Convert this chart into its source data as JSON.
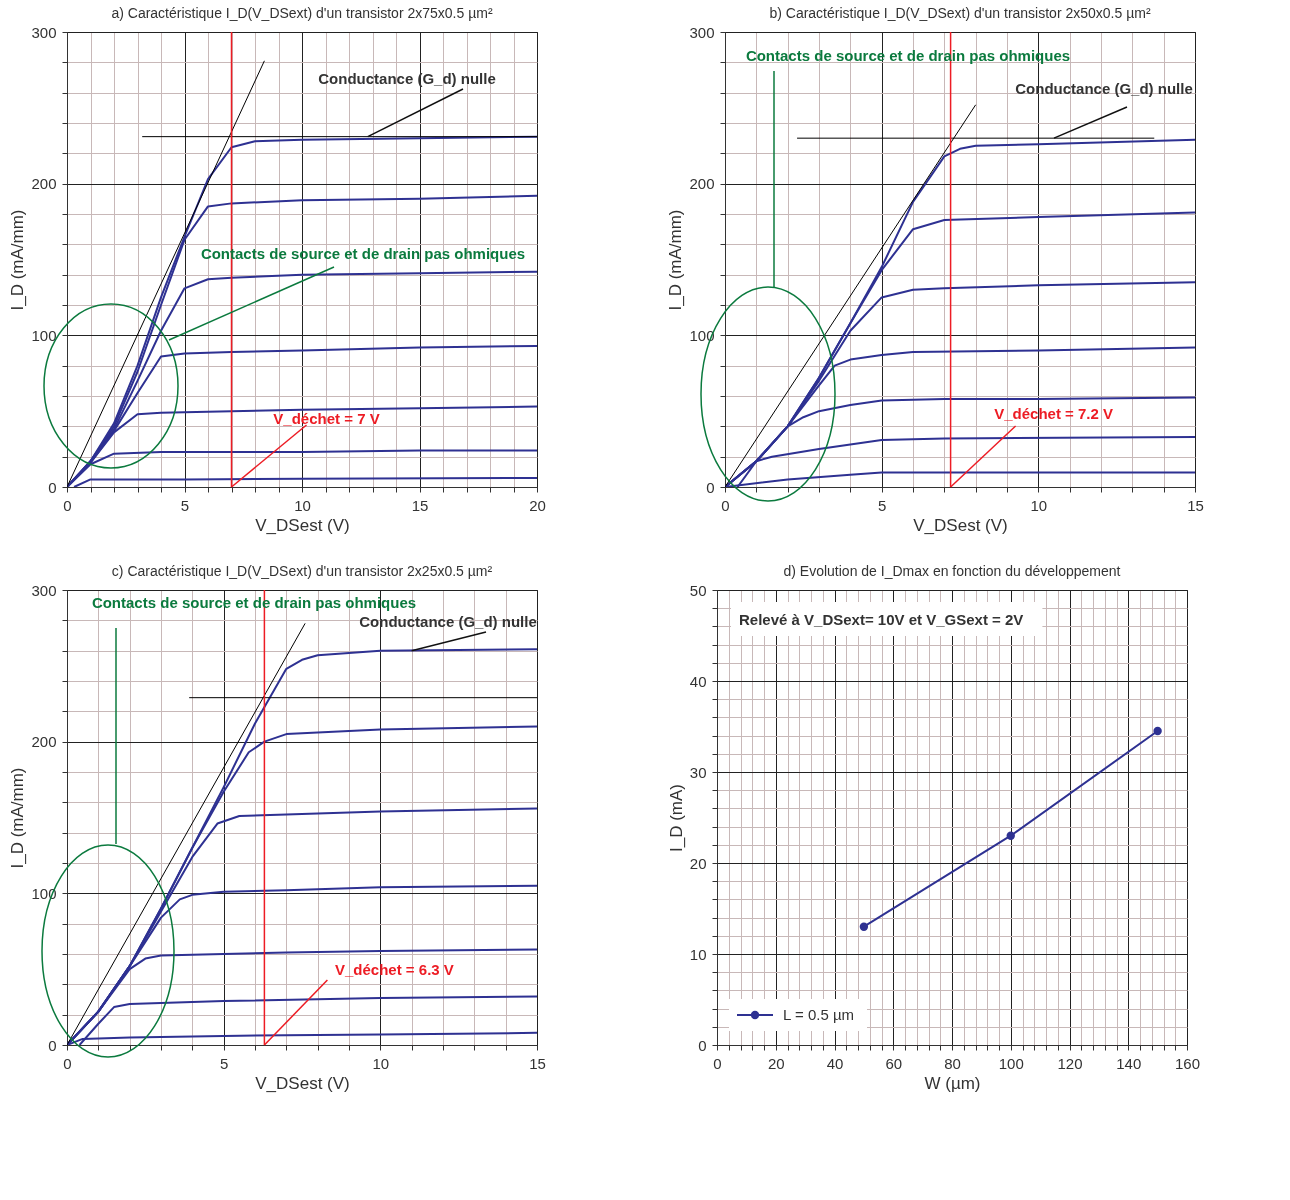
{
  "chart_data": [
    {
      "type": "line",
      "title": "a) Caractéristique I_D(V_DSext) d'un transistor 2x75x0.5 µm²",
      "xlabel": "V_DSest (V)",
      "ylabel": "I_D (mA/mm)",
      "xlim": [
        0,
        20
      ],
      "ylim": [
        0,
        300
      ],
      "grid": true,
      "xticks": [
        0,
        {
          "value": 1,
          "label": null
        },
        {
          "value": 2,
          "label": null
        },
        {
          "value": 3,
          "label": null
        },
        {
          "value": 4,
          "label": null
        },
        5,
        {
          "value": 6,
          "label": null
        },
        {
          "value": 7,
          "label": null
        },
        {
          "value": 8,
          "label": null
        },
        {
          "value": 9,
          "label": null
        },
        10,
        {
          "value": 11,
          "label": null
        },
        {
          "value": 12,
          "label": null
        },
        {
          "value": 13,
          "label": null
        },
        {
          "value": 14,
          "label": null
        },
        15,
        {
          "value": 16,
          "label": null
        },
        {
          "value": 17,
          "label": null
        },
        {
          "value": 18,
          "label": null
        },
        {
          "value": 19,
          "label": null
        },
        20
      ],
      "yticks": [
        0,
        {
          "value": 20,
          "label": null
        },
        {
          "value": 40,
          "label": null
        },
        {
          "value": 60,
          "label": null
        },
        {
          "value": 80,
          "label": null
        },
        100,
        {
          "value": 120,
          "label": null
        },
        {
          "value": 140,
          "label": null
        },
        {
          "value": 160,
          "label": null
        },
        {
          "value": 180,
          "label": null
        },
        200,
        {
          "value": 220,
          "label": null
        },
        {
          "value": 240,
          "label": null
        },
        {
          "value": 260,
          "label": null
        },
        {
          "value": 280,
          "label": null
        },
        300
      ],
      "series": [
        {
          "color": "#2e3192",
          "x": [
            0,
            1,
            2,
            3,
            4,
            5,
            6,
            7,
            8,
            10,
            15,
            20
          ],
          "values": [
            0,
            17,
            42,
            80,
            125,
            165,
            203,
            224,
            228,
            229,
            230,
            231
          ]
        },
        {
          "color": "#2e3192",
          "x": [
            0,
            1,
            2,
            3,
            4,
            5,
            6,
            7,
            10,
            15,
            20
          ],
          "values": [
            0,
            17,
            40,
            76,
            120,
            163,
            185,
            187,
            189,
            190,
            192
          ]
        },
        {
          "color": "#2e3192",
          "x": [
            0,
            1,
            2,
            3,
            4,
            5,
            6,
            7,
            10,
            15,
            20
          ],
          "values": [
            0,
            17,
            38,
            70,
            103,
            131,
            137,
            138,
            140,
            141,
            142
          ]
        },
        {
          "color": "#2e3192",
          "x": [
            0,
            1,
            2,
            3,
            4,
            5,
            7,
            10,
            15,
            20
          ],
          "values": [
            0,
            16,
            37,
            62,
            86,
            88,
            89,
            90,
            92,
            93
          ]
        },
        {
          "color": "#2e3192",
          "x": [
            0,
            1,
            2,
            3,
            4,
            7,
            10,
            15,
            20
          ],
          "values": [
            0,
            16,
            36,
            48,
            49,
            50,
            51,
            52,
            53
          ]
        },
        {
          "color": "#2e3192",
          "x": [
            0,
            1,
            2,
            4,
            10,
            15,
            20
          ],
          "values": [
            0,
            15,
            22,
            23,
            23,
            24,
            24
          ]
        },
        {
          "color": "#2e3192",
          "x": [
            0.3,
            1,
            5,
            10,
            20
          ],
          "values": [
            0,
            5,
            5,
            5.5,
            6
          ]
        },
        {
          "type": "line",
          "color": "#000000",
          "x": [
            0,
            8.4
          ],
          "values": [
            0,
            281
          ]
        },
        {
          "type": "line",
          "color": "#000000",
          "x": [
            3.2,
            20
          ],
          "values": [
            231,
            231
          ]
        }
      ],
      "ref_lines": [
        {
          "axis": "x",
          "value": 7,
          "label": "V_déchet = 7 V",
          "color": "#ed1c24"
        }
      ],
      "annotations": [
        {
          "text": "Conductance (G_d) nulle",
          "x": 12.8,
          "y": 231
        },
        "Contacts de source et de drain pas ohmiques"
      ]
    },
    {
      "type": "line",
      "title": "b) Caractéristique I_D(V_DSext) d'un transistor 2x50x0.5 µm²",
      "xlabel": "V_DSest (V)",
      "ylabel": "I_D (mA/mm)",
      "xlim": [
        0,
        15
      ],
      "ylim": [
        0,
        300
      ],
      "grid": true,
      "xticks": [
        0,
        {
          "value": 1,
          "label": null
        },
        {
          "value": 2,
          "label": null
        },
        {
          "value": 3,
          "label": null
        },
        {
          "value": 4,
          "label": null
        },
        5,
        {
          "value": 6,
          "label": null
        },
        {
          "value": 7,
          "label": null
        },
        {
          "value": 8,
          "label": null
        },
        {
          "value": 9,
          "label": null
        },
        10,
        {
          "value": 11,
          "label": null
        },
        {
          "value": 12,
          "label": null
        },
        {
          "value": 13,
          "label": null
        },
        {
          "value": 14,
          "label": null
        },
        15
      ],
      "yticks": [
        0,
        {
          "value": 20,
          "label": null
        },
        {
          "value": 40,
          "label": null
        },
        {
          "value": 60,
          "label": null
        },
        {
          "value": 80,
          "label": null
        },
        100,
        {
          "value": 120,
          "label": null
        },
        {
          "value": 140,
          "label": null
        },
        {
          "value": 160,
          "label": null
        },
        {
          "value": 180,
          "label": null
        },
        200,
        {
          "value": 220,
          "label": null
        },
        {
          "value": 240,
          "label": null
        },
        {
          "value": 260,
          "label": null
        },
        {
          "value": 280,
          "label": null
        },
        300
      ],
      "series": [
        {
          "color": "#2e3192",
          "x": [
            0,
            1,
            2,
            3,
            4,
            5,
            6,
            7,
            7.5,
            8,
            10,
            15
          ],
          "values": [
            0,
            17,
            40,
            72,
            108,
            145,
            188,
            218,
            223,
            225,
            226,
            229
          ]
        },
        {
          "color": "#2e3192",
          "x": [
            0,
            1,
            2,
            3,
            4,
            5,
            6,
            7,
            10,
            15
          ],
          "values": [
            0,
            17,
            40,
            72,
            108,
            143,
            170,
            176,
            178,
            181
          ]
        },
        {
          "color": "#2e3192",
          "x": [
            0,
            1,
            2,
            3,
            4,
            5,
            6,
            7,
            10,
            15
          ],
          "values": [
            0,
            17,
            40,
            70,
            103,
            125,
            130,
            131,
            133,
            135
          ]
        },
        {
          "color": "#2e3192",
          "x": [
            0,
            1,
            2,
            3,
            3.5,
            4,
            5,
            6,
            10,
            15
          ],
          "values": [
            0,
            17,
            40,
            67,
            80,
            84,
            87,
            89,
            90,
            92
          ]
        },
        {
          "color": "#2e3192",
          "x": [
            0,
            1,
            2,
            2.5,
            3,
            4,
            5,
            7,
            10,
            15
          ],
          "values": [
            0,
            17,
            40,
            46,
            50,
            54,
            57,
            58,
            58,
            59
          ]
        },
        {
          "color": "#2e3192",
          "x": [
            0.4,
            1,
            1.5,
            3,
            5,
            7,
            15
          ],
          "values": [
            0,
            17,
            20,
            25,
            31,
            32,
            33
          ]
        },
        {
          "color": "#2e3192",
          "x": [
            0,
            2,
            4,
            5,
            10,
            15
          ],
          "values": [
            0,
            5,
            8,
            9.5,
            9.5,
            9.5
          ]
        },
        {
          "type": "line",
          "color": "#000000",
          "x": [
            0,
            8
          ],
          "values": [
            0,
            252
          ]
        },
        {
          "type": "line",
          "color": "#000000",
          "x": [
            2.3,
            13.7
          ],
          "values": [
            230,
            230
          ]
        }
      ],
      "ref_lines": [
        {
          "axis": "x",
          "value": 7.2,
          "label": "V_déchet = 7.2 V",
          "color": "#ed1c24"
        }
      ],
      "annotations": [
        {
          "text": "Conductance (G_d) nulle",
          "x": 10.5,
          "y": 230
        },
        "Contacts de source et de drain pas ohmiques"
      ]
    },
    {
      "type": "line",
      "title": "c) Caractéristique I_D(V_DSext) d'un transistor 2x25x0.5 µm²",
      "xlabel": "V_DSest (V)",
      "ylabel": "I_D (mA/mm)",
      "xlim": [
        0,
        15
      ],
      "ylim": [
        0,
        300
      ],
      "grid": true,
      "xticks": [
        0,
        {
          "value": 1,
          "label": null
        },
        {
          "value": 2,
          "label": null
        },
        {
          "value": 3,
          "label": null
        },
        {
          "value": 4,
          "label": null
        },
        5,
        {
          "value": 6,
          "label": null
        },
        {
          "value": 7,
          "label": null
        },
        {
          "value": 8,
          "label": null
        },
        {
          "value": 9,
          "label": null
        },
        10,
        {
          "value": 11,
          "label": null
        },
        {
          "value": 12,
          "label": null
        },
        {
          "value": 13,
          "label": null
        },
        {
          "value": 14,
          "label": null
        },
        15
      ],
      "yticks": [
        0,
        {
          "value": 20,
          "label": null
        },
        {
          "value": 40,
          "label": null
        },
        {
          "value": 60,
          "label": null
        },
        {
          "value": 80,
          "label": null
        },
        100,
        {
          "value": 120,
          "label": null
        },
        {
          "value": 140,
          "label": null
        },
        {
          "value": 160,
          "label": null
        },
        {
          "value": 180,
          "label": null
        },
        200,
        {
          "value": 220,
          "label": null
        },
        {
          "value": 240,
          "label": null
        },
        {
          "value": 260,
          "label": null
        },
        {
          "value": 280,
          "label": null
        },
        300
      ],
      "series": [
        {
          "color": "#2e3192",
          "x": [
            0,
            1,
            2,
            3,
            4,
            5,
            6,
            7,
            7.5,
            8,
            10,
            15
          ],
          "values": [
            0,
            22,
            52,
            90,
            130,
            170,
            212,
            248,
            254,
            257,
            260,
            261
          ]
        },
        {
          "color": "#2e3192",
          "x": [
            0,
            1,
            2,
            3,
            4,
            5,
            5.8,
            6.3,
            7,
            10,
            15
          ],
          "values": [
            0,
            22,
            52,
            90,
            130,
            167,
            193,
            200,
            205,
            208,
            210
          ]
        },
        {
          "color": "#2e3192",
          "x": [
            0,
            1,
            2,
            3,
            4,
            4.8,
            5.5,
            7,
            10,
            15
          ],
          "values": [
            0,
            22,
            52,
            88,
            124,
            146,
            151,
            152,
            154,
            156
          ]
        },
        {
          "color": "#2e3192",
          "x": [
            0,
            1,
            2,
            3,
            3.6,
            4,
            5,
            7,
            10,
            15
          ],
          "values": [
            0,
            22,
            52,
            84,
            96,
            99,
            101,
            102,
            104,
            105
          ]
        },
        {
          "color": "#2e3192",
          "x": [
            0,
            1,
            2,
            2.5,
            3,
            5,
            7,
            10,
            15
          ],
          "values": [
            0,
            22,
            50,
            57,
            59,
            60,
            61,
            62,
            63
          ]
        },
        {
          "color": "#2e3192",
          "x": [
            0.4,
            1,
            1.5,
            2,
            5,
            10,
            15
          ],
          "values": [
            0,
            14,
            25,
            27,
            29,
            31,
            32
          ]
        },
        {
          "color": "#2e3192",
          "x": [
            0,
            0.5,
            2,
            5,
            10,
            15
          ],
          "values": [
            0,
            4,
            5,
            6,
            7,
            8
          ]
        },
        {
          "type": "line",
          "color": "#000000",
          "x": [
            0,
            7.6
          ],
          "values": [
            0,
            278
          ]
        },
        {
          "type": "line",
          "color": "#000000",
          "x": [
            3.9,
            15
          ],
          "values": [
            229,
            229
          ]
        }
      ],
      "ref_lines": [
        {
          "axis": "x",
          "value": 6.3,
          "label": "V_déchet = 6.3 V",
          "color": "#ed1c24"
        }
      ],
      "annotations": [
        {
          "text": "Conductance (G_d) nulle",
          "x": 11,
          "y": 260
        },
        "Contacts de source et de drain pas ohmiques"
      ]
    },
    {
      "type": "line",
      "title": "d) Evolution de I_Dmax en fonction du développement",
      "xlabel": "W (µm)",
      "ylabel": "I_D (mA)",
      "xlim": [
        0,
        160
      ],
      "ylim": [
        0,
        50
      ],
      "grid": true,
      "legend": "bottom left",
      "marker": "circle",
      "line_style": "solid",
      "xticks": [
        0,
        {
          "value": 4,
          "label": null
        },
        {
          "value": 8,
          "label": null
        },
        {
          "value": 12,
          "label": null
        },
        {
          "value": 16,
          "label": null
        },
        20,
        {
          "value": 24,
          "label": null
        },
        {
          "value": 28,
          "label": null
        },
        {
          "value": 32,
          "label": null
        },
        {
          "value": 36,
          "label": null
        },
        40,
        {
          "value": 44,
          "label": null
        },
        {
          "value": 48,
          "label": null
        },
        {
          "value": 52,
          "label": null
        },
        {
          "value": 56,
          "label": null
        },
        60,
        {
          "value": 64,
          "label": null
        },
        {
          "value": 68,
          "label": null
        },
        {
          "value": 72,
          "label": null
        },
        {
          "value": 76,
          "label": null
        },
        80,
        {
          "value": 84,
          "label": null
        },
        {
          "value": 88,
          "label": null
        },
        {
          "value": 92,
          "label": null
        },
        {
          "value": 96,
          "label": null
        },
        100,
        {
          "value": 104,
          "label": null
        },
        {
          "value": 108,
          "label": null
        },
        {
          "value": 112,
          "label": null
        },
        {
          "value": 116,
          "label": null
        },
        120,
        {
          "value": 124,
          "label": null
        },
        {
          "value": 128,
          "label": null
        },
        {
          "value": 132,
          "label": null
        },
        {
          "value": 136,
          "label": null
        },
        140,
        {
          "value": 144,
          "label": null
        },
        {
          "value": 148,
          "label": null
        },
        {
          "value": 152,
          "label": null
        },
        {
          "value": 156,
          "label": null
        },
        160
      ],
      "yticks": [
        0,
        {
          "value": 2,
          "label": null
        },
        {
          "value": 4,
          "label": null
        },
        {
          "value": 6,
          "label": null
        },
        {
          "value": 8,
          "label": null
        },
        10,
        {
          "value": 12,
          "label": null
        },
        {
          "value": 14,
          "label": null
        },
        {
          "value": 16,
          "label": null
        },
        {
          "value": 18,
          "label": null
        },
        20,
        {
          "value": 22,
          "label": null
        },
        {
          "value": 24,
          "label": null
        },
        {
          "value": 26,
          "label": null
        },
        {
          "value": 28,
          "label": null
        },
        30,
        {
          "value": 32,
          "label": null
        },
        {
          "value": 34,
          "label": null
        },
        {
          "value": 36,
          "label": null
        },
        {
          "value": 38,
          "label": null
        },
        40,
        {
          "value": 42,
          "label": null
        },
        {
          "value": 44,
          "label": null
        },
        {
          "value": 46,
          "label": null
        },
        {
          "value": 48,
          "label": null
        },
        50
      ],
      "series": [
        {
          "name": "L = 0.5 µm",
          "color": "#2e3192",
          "x": [
            50,
            100,
            150
          ],
          "values": [
            13,
            23,
            34.5
          ]
        }
      ],
      "annotations": [
        "Relevé à V_DSext= 10V et V_GSext = 2V"
      ]
    }
  ]
}
